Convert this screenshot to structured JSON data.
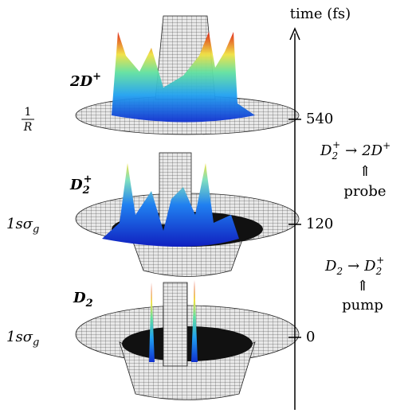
{
  "axis": {
    "title": "time (fs)",
    "ticks": [
      540,
      120,
      0
    ]
  },
  "left_labels": [
    {
      "numerator": "1",
      "denominator": "R"
    },
    {
      "base": "1sσ",
      "sub": "g"
    },
    {
      "base": "1sσ",
      "sub": "g"
    }
  ],
  "species": [
    {
      "base": "2D",
      "sub": "",
      "sup": "+"
    },
    {
      "base": "D",
      "sub": "2",
      "sup": "+"
    },
    {
      "base": "D",
      "sub": "2",
      "sup": ""
    }
  ],
  "reactions": [
    {
      "lhs": "D",
      "lhs_sub": "2",
      "lhs_sup": "+",
      "arrow": "→",
      "rhs": "2D",
      "rhs_sup": "+",
      "up": "⇑",
      "label": "probe"
    },
    {
      "lhs": "D",
      "lhs_sub": "2",
      "arrow": "→",
      "rhs": "D",
      "rhs_sub": "2",
      "rhs_sup": "+",
      "up": "⇑",
      "label": "pump"
    }
  ]
}
